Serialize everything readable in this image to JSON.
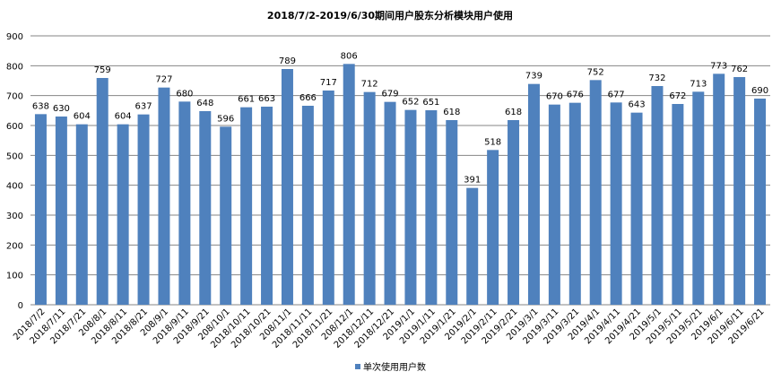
{
  "chart_data": {
    "type": "bar",
    "title": "2018/7/2-2019/6/30期间用户股东分析模块用户使用",
    "xlabel": "",
    "ylabel": "",
    "ylim": [
      0,
      900
    ],
    "yticks": [
      0,
      100,
      200,
      300,
      400,
      500,
      600,
      700,
      800,
      900
    ],
    "grid": true,
    "legend_position": "bottom",
    "categories": [
      "2018/7/2",
      "2018/7/11",
      "2018/7/21",
      "208/8/1",
      "2018/8/11",
      "2018/8/21",
      "208/9/1",
      "2018/9/11",
      "2018/9/21",
      "208/10/1",
      "2018/10/11",
      "2018/10/21",
      "208/11/1",
      "2018/11/11",
      "2018/11/21",
      "208/12/1",
      "2018/12/11",
      "2018/12/21",
      "2019/1/1",
      "2019/1/11",
      "2019/1/21",
      "2019/2/1",
      "2019/2/11",
      "2019/2/21",
      "2019/3/1",
      "2019/3/11",
      "2019/3/21",
      "2019/4/1",
      "2019/4/11",
      "2019/4/21",
      "2019/5/1",
      "2019/5/11",
      "2019/5/21",
      "2019/6/1",
      "2019/6/11",
      "2019/6/21"
    ],
    "series": [
      {
        "name": "单次使用用户数",
        "color": "#4F81BD",
        "values": [
          638,
          630,
          604,
          759,
          604,
          637,
          727,
          680,
          648,
          596,
          661,
          663,
          789,
          666,
          717,
          806,
          712,
          679,
          652,
          651,
          618,
          391,
          518,
          618,
          739,
          670,
          676,
          752,
          677,
          643,
          732,
          672,
          713,
          773,
          762,
          690
        ]
      }
    ]
  }
}
